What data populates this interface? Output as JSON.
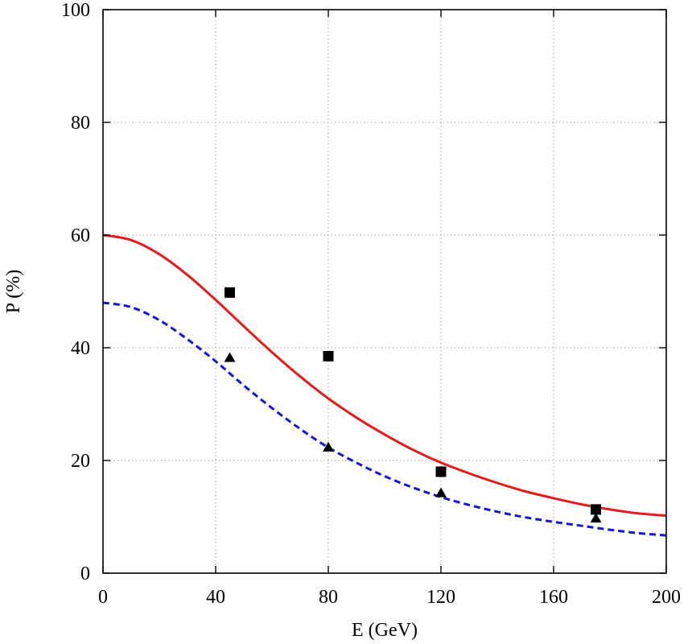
{
  "chart_data": {
    "type": "line",
    "title": "",
    "xlabel": "E (GeV)",
    "ylabel": "P (%)",
    "xlim": [
      0,
      200
    ],
    "ylim": [
      0,
      100
    ],
    "xticks": [
      0,
      40,
      80,
      120,
      160,
      200
    ],
    "yticks": [
      0,
      20,
      40,
      60,
      80,
      100
    ],
    "grid": true,
    "legend": "none",
    "series": [
      {
        "kind": "line",
        "style": "solid",
        "color": "#e8191b",
        "x": [
          0,
          10,
          20,
          30,
          40,
          50,
          60,
          70,
          80,
          90,
          100,
          110,
          120,
          130,
          140,
          150,
          160,
          170,
          180,
          190,
          200
        ],
        "y": [
          60.0,
          59.1,
          56.6,
          52.9,
          48.5,
          43.8,
          39.2,
          34.9,
          31.0,
          27.6,
          24.6,
          21.9,
          19.6,
          17.7,
          16.0,
          14.5,
          13.3,
          12.2,
          11.3,
          10.6,
          10.2
        ]
      },
      {
        "kind": "line",
        "style": "dashed",
        "color": "#1515d6",
        "x": [
          0,
          10,
          20,
          30,
          40,
          50,
          60,
          70,
          80,
          90,
          100,
          110,
          120,
          130,
          140,
          150,
          160,
          170,
          180,
          190,
          200
        ],
        "y": [
          48.0,
          47.2,
          44.9,
          41.5,
          37.6,
          33.3,
          29.3,
          25.6,
          22.3,
          19.6,
          17.2,
          15.2,
          13.5,
          12.1,
          10.9,
          9.9,
          9.1,
          8.4,
          7.7,
          7.1,
          6.7
        ]
      },
      {
        "kind": "scatter",
        "marker": "square",
        "color": "#000000",
        "x": [
          45,
          80,
          120,
          175
        ],
        "y": [
          49.8,
          38.5,
          18.0,
          11.3
        ]
      },
      {
        "kind": "scatter",
        "marker": "triangle",
        "color": "#000000",
        "x": [
          45,
          80,
          120,
          175
        ],
        "y": [
          38.2,
          22.3,
          14.2,
          9.7
        ]
      }
    ]
  }
}
